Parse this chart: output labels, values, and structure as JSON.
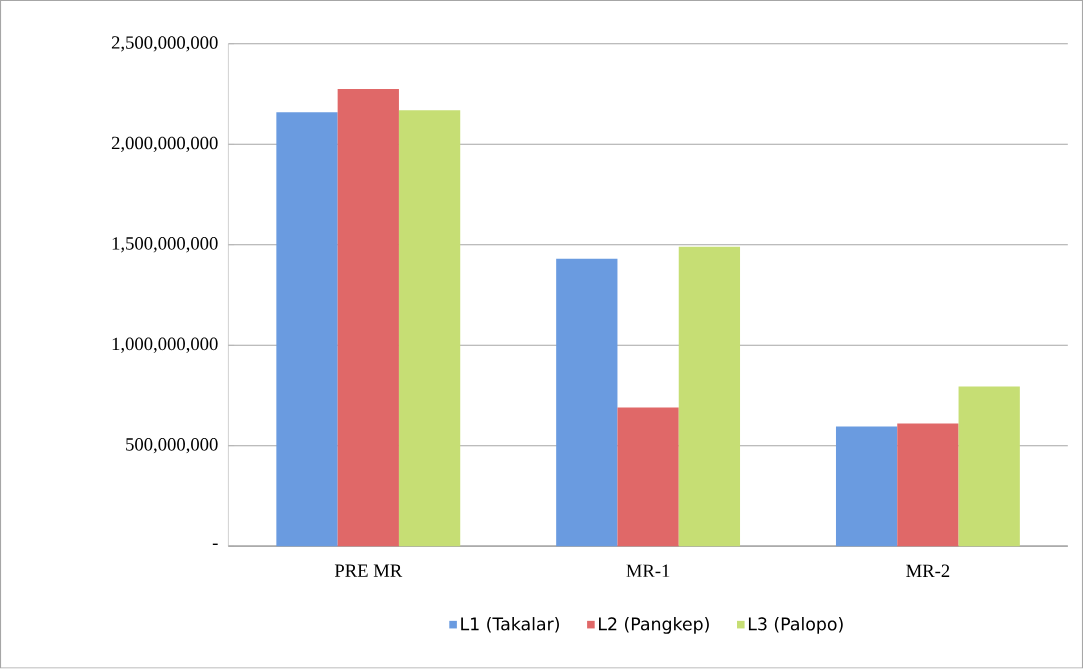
{
  "chart_data": {
    "type": "bar",
    "categories": [
      "PRE MR",
      "MR-1",
      "MR-2"
    ],
    "series": [
      {
        "name": "L1 (Takalar)",
        "color": "#6a9be0",
        "values": [
          2160000000,
          1430000000,
          595000000
        ]
      },
      {
        "name": "L2 (Pangkep)",
        "color": "#e06868",
        "values": [
          2275000000,
          690000000,
          610000000
        ]
      },
      {
        "name": "L3 (Palopo)",
        "color": "#c6de74",
        "values": [
          2170000000,
          1490000000,
          795000000
        ]
      }
    ],
    "ylim": [
      0,
      2500000000
    ],
    "yticks": [
      {
        "value": 0,
        "label": "-"
      },
      {
        "value": 500000000,
        "label": "500,000,000"
      },
      {
        "value": 1000000000,
        "label": "1,000,000,000"
      },
      {
        "value": 1500000000,
        "label": "1,500,000,000"
      },
      {
        "value": 2000000000,
        "label": "2,000,000,000"
      },
      {
        "value": 2500000000,
        "label": "2,500,000,000"
      }
    ],
    "grid": "y",
    "legend": "bottom"
  }
}
